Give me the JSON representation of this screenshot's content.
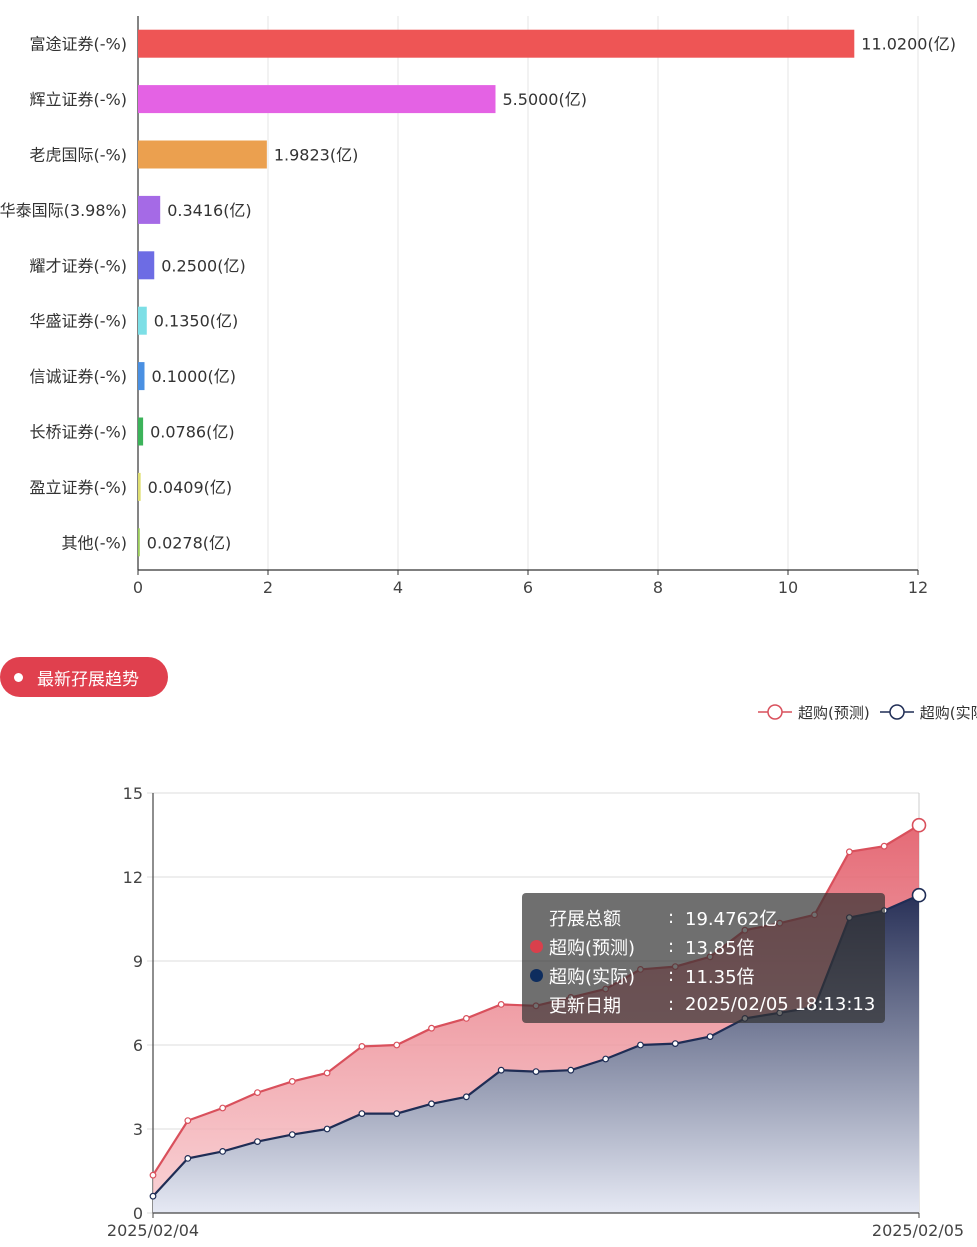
{
  "colors": {
    "pill_bg": "#e0404e",
    "series_pred": "#d9505c",
    "series_actual": "#1f2d55",
    "tooltip_bg": "rgba(50,50,50,0.7)"
  },
  "chart_data": [
    {
      "type": "bar",
      "orientation": "horizontal",
      "categories": [
        "富途证券(-%)",
        "辉立证券(-%)",
        "老虎国际(-%)",
        "华泰国际(3.98%)",
        "耀才证券(-%)",
        "华盛证券(-%)",
        "信诚证券(-%)",
        "长桥证券(-%)",
        "盈立证券(-%)",
        "其他(-%)"
      ],
      "values": [
        11.02,
        5.5,
        1.9823,
        0.3416,
        0.25,
        0.135,
        0.1,
        0.0786,
        0.0409,
        0.0278
      ],
      "data_labels": [
        "11.0200(亿)",
        "5.5000(亿)",
        "1.9823(亿)",
        "0.3416(亿)",
        "0.2500(亿)",
        "0.1350(亿)",
        "0.1000(亿)",
        "0.0786(亿)",
        "0.0409(亿)",
        "0.0278(亿)"
      ],
      "colors": [
        "#ee5555",
        "#e462e4",
        "#eba04f",
        "#a56ae6",
        "#6d6ce4",
        "#7ddfe6",
        "#4a90e2",
        "#3cb35a",
        "#dede72",
        "#9acd5a"
      ],
      "xlim": [
        0,
        12
      ],
      "xticks": [
        "0",
        "2",
        "4",
        "6",
        "8",
        "10",
        "12"
      ],
      "grid": true
    },
    {
      "type": "area",
      "section_title": "最新孖展趋势",
      "legend": [
        "超购(预测)",
        "超购(实际)"
      ],
      "legend_position": "top-right",
      "x_labels": [
        "2025/02/04",
        "2025/02/05"
      ],
      "ylim": [
        0,
        15
      ],
      "yticks": [
        "0",
        "3",
        "6",
        "9",
        "12",
        "15"
      ],
      "grid": true,
      "series": [
        {
          "name": "超购(预测)",
          "color": "#d9505c",
          "values": [
            1.35,
            3.3,
            3.75,
            4.3,
            4.7,
            5.0,
            5.95,
            6.0,
            6.6,
            6.95,
            7.45,
            7.4,
            7.7,
            8.0,
            8.7,
            8.8,
            9.15,
            10.1,
            10.35,
            10.65,
            12.9,
            13.1,
            13.85
          ]
        },
        {
          "name": "超购(实际)",
          "color": "#1f2d55",
          "values": [
            0.6,
            1.95,
            2.2,
            2.55,
            2.8,
            3.0,
            3.55,
            3.55,
            3.9,
            4.15,
            5.1,
            5.05,
            5.1,
            5.5,
            6.0,
            6.05,
            6.3,
            6.95,
            7.15,
            7.35,
            10.55,
            10.8,
            11.35
          ]
        }
      ],
      "tooltip": {
        "rows": [
          {
            "name": "孖展总额",
            "sep": ":",
            "value": "19.4762亿",
            "marker": ""
          },
          {
            "name": "超购(预测)",
            "sep": ":",
            "value": "13.85倍",
            "marker": "#d9404c"
          },
          {
            "name": "超购(实际)",
            "sep": ":",
            "value": "11.35倍",
            "marker": "#0e2d5e"
          },
          {
            "name": "更新日期",
            "sep": ":",
            "value": "2025/02/05 18:13:13",
            "marker": ""
          }
        ]
      }
    }
  ]
}
